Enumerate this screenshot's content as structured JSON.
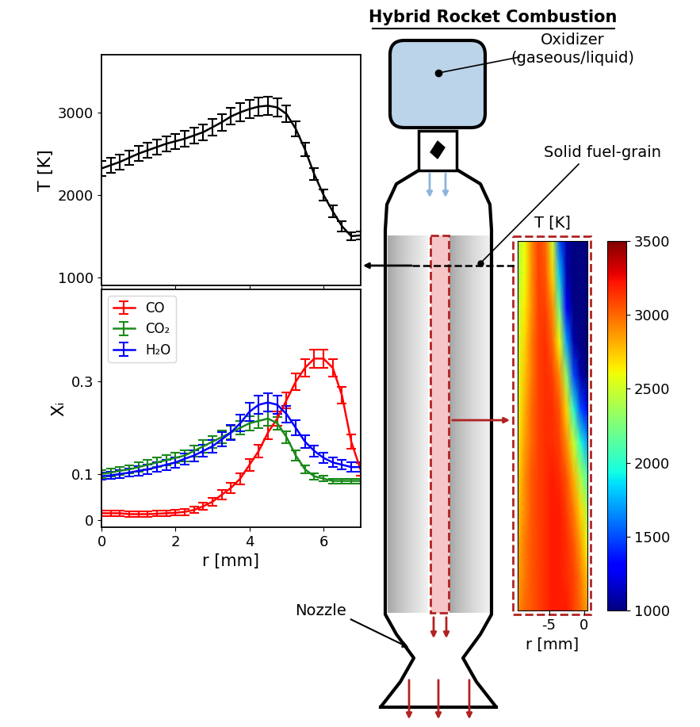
{
  "title": "Hybrid Rocket Combustion",
  "diagram": {
    "oxidizer": "Oxidizer\n(gaseous/liquid)",
    "fuel_grain": "Solid fuel-grain",
    "nozzle": "Nozzle"
  },
  "chart_data": [
    {
      "type": "line",
      "ylabel": "T [K]",
      "x": [
        0,
        0.25,
        0.5,
        0.75,
        1,
        1.25,
        1.5,
        1.75,
        2,
        2.25,
        2.5,
        2.75,
        3,
        3.25,
        3.5,
        3.75,
        4,
        4.25,
        4.5,
        4.75,
        5,
        5.25,
        5.5,
        5.75,
        6,
        6.25,
        6.5,
        6.75,
        7
      ],
      "xlim": [
        0,
        7
      ],
      "xticks": [
        0,
        2,
        4,
        6
      ],
      "ylim": [
        900,
        3700
      ],
      "yticks": [
        1000,
        2000,
        3000
      ],
      "tick_labels": "y",
      "series": [
        {
          "color": "#000000",
          "values": [
            2320,
            2360,
            2400,
            2450,
            2500,
            2540,
            2580,
            2620,
            2650,
            2680,
            2720,
            2760,
            2820,
            2880,
            2950,
            3000,
            3040,
            3070,
            3080,
            3060,
            2980,
            2800,
            2550,
            2250,
            2000,
            1800,
            1620,
            1500,
            1510
          ],
          "error": [
            90,
            90,
            90,
            90,
            90,
            90,
            90,
            90,
            90,
            95,
            95,
            95,
            100,
            100,
            100,
            110,
            110,
            110,
            110,
            110,
            100,
            90,
            80,
            70,
            70,
            70,
            60,
            50,
            50
          ]
        }
      ]
    },
    {
      "type": "line",
      "xlabel": "r [mm]",
      "ylabel": "Xᵢ",
      "legend": "upper left",
      "x": [
        0,
        0.25,
        0.5,
        0.75,
        1,
        1.25,
        1.5,
        1.75,
        2,
        2.25,
        2.5,
        2.75,
        3,
        3.25,
        3.5,
        3.75,
        4,
        4.25,
        4.5,
        4.75,
        5,
        5.25,
        5.5,
        5.75,
        6,
        6.25,
        6.5,
        6.75,
        7
      ],
      "xlim": [
        0,
        7
      ],
      "xticks": [
        0,
        2,
        4,
        6
      ],
      "ylim": [
        -0.015,
        0.5
      ],
      "yticks": [
        0,
        0.1,
        0.3
      ],
      "series": [
        {
          "name": "CO",
          "color": "#ff0000",
          "values": [
            0.015,
            0.015,
            0.015,
            0.013,
            0.013,
            0.013,
            0.014,
            0.015,
            0.016,
            0.018,
            0.022,
            0.03,
            0.04,
            0.055,
            0.07,
            0.09,
            0.12,
            0.15,
            0.19,
            0.22,
            0.26,
            0.3,
            0.33,
            0.35,
            0.35,
            0.33,
            0.27,
            0.17,
            0.11
          ],
          "error": [
            0.006,
            0.006,
            0.006,
            0.006,
            0.006,
            0.006,
            0.006,
            0.006,
            0.006,
            0.007,
            0.007,
            0.008,
            0.009,
            0.01,
            0.011,
            0.012,
            0.013,
            0.014,
            0.015,
            0.016,
            0.017,
            0.018,
            0.019,
            0.02,
            0.02,
            0.019,
            0.018,
            0.016,
            0.014
          ]
        },
        {
          "name": "CO₂",
          "color": "#1a8a1a",
          "values": [
            0.1,
            0.103,
            0.107,
            0.11,
            0.115,
            0.12,
            0.125,
            0.13,
            0.135,
            0.14,
            0.15,
            0.16,
            0.17,
            0.18,
            0.19,
            0.2,
            0.21,
            0.215,
            0.22,
            0.21,
            0.18,
            0.14,
            0.11,
            0.095,
            0.09,
            0.085,
            0.085,
            0.085,
            0.085
          ],
          "error": [
            0.008,
            0.008,
            0.009,
            0.009,
            0.01,
            0.01,
            0.01,
            0.011,
            0.011,
            0.012,
            0.012,
            0.013,
            0.013,
            0.014,
            0.014,
            0.015,
            0.015,
            0.015,
            0.015,
            0.014,
            0.013,
            0.011,
            0.009,
            0.007,
            0.006,
            0.005,
            0.005,
            0.005,
            0.005
          ]
        },
        {
          "name": "H₂O",
          "color": "#0000ff",
          "values": [
            0.095,
            0.097,
            0.1,
            0.103,
            0.107,
            0.11,
            0.115,
            0.12,
            0.125,
            0.133,
            0.14,
            0.15,
            0.16,
            0.175,
            0.19,
            0.21,
            0.235,
            0.25,
            0.255,
            0.25,
            0.23,
            0.2,
            0.17,
            0.15,
            0.135,
            0.125,
            0.12,
            0.115,
            0.115
          ],
          "error": [
            0.008,
            0.008,
            0.009,
            0.009,
            0.01,
            0.01,
            0.01,
            0.011,
            0.011,
            0.012,
            0.012,
            0.013,
            0.014,
            0.015,
            0.016,
            0.018,
            0.02,
            0.02,
            0.02,
            0.02,
            0.018,
            0.016,
            0.014,
            0.012,
            0.011,
            0.01,
            0.01,
            0.01,
            0.01
          ]
        }
      ]
    },
    {
      "type": "heatmap",
      "title": "T [K]",
      "xlabel": "r [mm]",
      "x": [
        -9.5,
        -8.5,
        -7.5,
        -6.5,
        -5.5,
        -4.5,
        -3.5,
        -2.5,
        -1.5,
        -0.5,
        0.5
      ],
      "xlim": [
        -9.5,
        0.5
      ],
      "xticks": [
        -5,
        0
      ],
      "tick_labels": "x",
      "cells": [
        [
          2400,
          2600,
          2900,
          3100,
          3000,
          2500,
          1500,
          1100,
          1000,
          1000,
          1000
        ],
        [
          2400,
          2600,
          2900,
          3100,
          3050,
          2700,
          1800,
          1100,
          1000,
          1000,
          1000
        ],
        [
          2450,
          2650,
          2900,
          3100,
          3100,
          2900,
          2200,
          1300,
          1000,
          1000,
          1000
        ],
        [
          2500,
          2700,
          2950,
          3100,
          3150,
          3000,
          2600,
          1700,
          1100,
          1000,
          1000
        ],
        [
          2550,
          2750,
          2950,
          3100,
          3150,
          3100,
          2900,
          2300,
          1500,
          1100,
          1000
        ],
        [
          2600,
          2800,
          3000,
          3100,
          3150,
          3150,
          3050,
          2700,
          2000,
          1500,
          1300
        ],
        [
          2650,
          2850,
          3000,
          3100,
          3150,
          3150,
          3100,
          2900,
          2500,
          2000,
          1700
        ],
        [
          2700,
          2900,
          3050,
          3100,
          3150,
          3200,
          3150,
          3050,
          2800,
          2400,
          2100
        ],
        [
          2750,
          2900,
          3050,
          3100,
          3150,
          3200,
          3200,
          3100,
          2950,
          2700,
          2400
        ],
        [
          2800,
          2950,
          3050,
          3100,
          3150,
          3200,
          3200,
          3150,
          3050,
          2850,
          2600
        ],
        [
          2850,
          2950,
          3050,
          3100,
          3150,
          3200,
          3200,
          3150,
          3100,
          2950,
          2750
        ],
        [
          2900,
          3000,
          3050,
          3100,
          3150,
          3200,
          3200,
          3200,
          3100,
          3000,
          2850
        ]
      ],
      "colorbar": {
        "lim": [
          1000,
          3500
        ],
        "ticks": [
          1000,
          1500,
          2000,
          2500,
          3000,
          3500
        ]
      }
    }
  ]
}
